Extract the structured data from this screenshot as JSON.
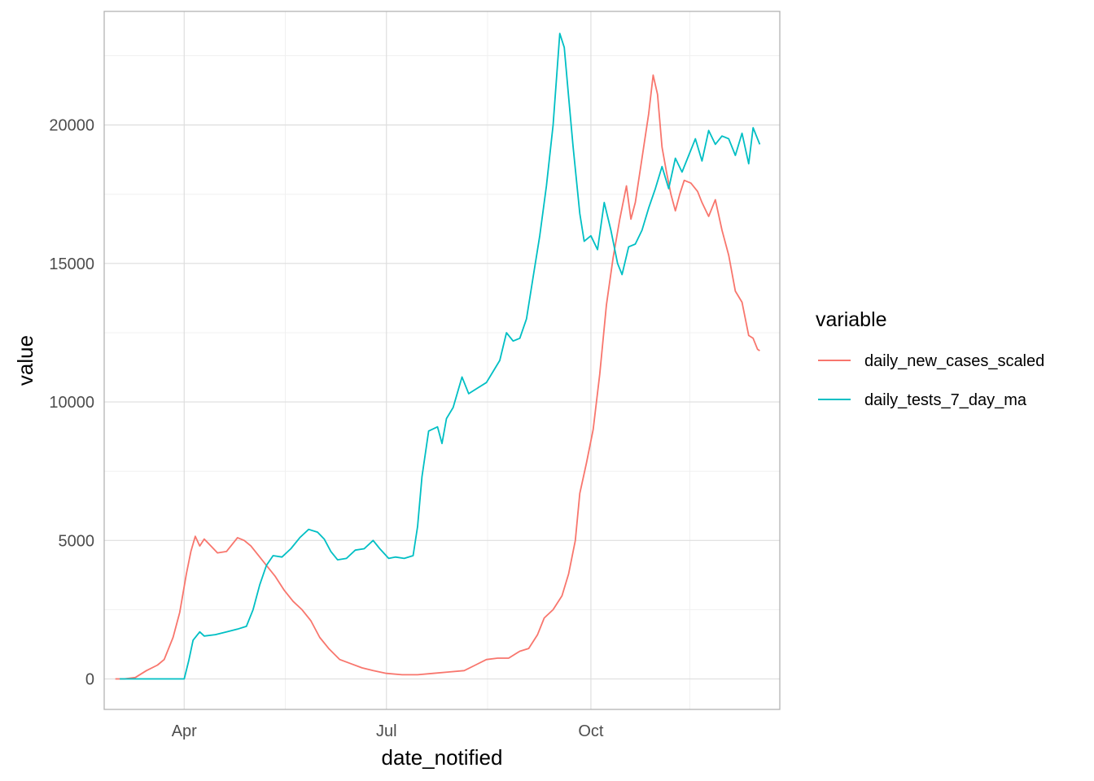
{
  "chart_data": {
    "type": "line",
    "title": "",
    "xlabel": "date_notified",
    "ylabel": "value",
    "x_ticks": [
      {
        "date": "2020-04-01",
        "label": "Apr"
      },
      {
        "date": "2020-07-01",
        "label": "Jul"
      },
      {
        "date": "2020-10-01",
        "label": "Oct"
      }
    ],
    "y_ticks": [
      0,
      5000,
      10000,
      15000,
      20000
    ],
    "xlim": [
      "2020-02-25",
      "2020-12-25"
    ],
    "ylim": [
      -1100,
      24100
    ],
    "grid": true,
    "legend": {
      "title": "variable",
      "position": "right"
    },
    "series": [
      {
        "name": "daily_new_cases_scaled",
        "color": "#F8766D",
        "points": [
          [
            "2020-03-01",
            0
          ],
          [
            "2020-03-05",
            0
          ],
          [
            "2020-03-10",
            50
          ],
          [
            "2020-03-15",
            300
          ],
          [
            "2020-03-20",
            500
          ],
          [
            "2020-03-23",
            700
          ],
          [
            "2020-03-27",
            1500
          ],
          [
            "2020-03-30",
            2400
          ],
          [
            "2020-04-02",
            3800
          ],
          [
            "2020-04-04",
            4600
          ],
          [
            "2020-04-06",
            5150
          ],
          [
            "2020-04-08",
            4800
          ],
          [
            "2020-04-10",
            5050
          ],
          [
            "2020-04-13",
            4800
          ],
          [
            "2020-04-16",
            4550
          ],
          [
            "2020-04-20",
            4600
          ],
          [
            "2020-04-23",
            4900
          ],
          [
            "2020-04-25",
            5100
          ],
          [
            "2020-04-28",
            5000
          ],
          [
            "2020-05-01",
            4800
          ],
          [
            "2020-05-04",
            4500
          ],
          [
            "2020-05-08",
            4100
          ],
          [
            "2020-05-12",
            3700
          ],
          [
            "2020-05-16",
            3200
          ],
          [
            "2020-05-20",
            2800
          ],
          [
            "2020-05-24",
            2500
          ],
          [
            "2020-05-28",
            2100
          ],
          [
            "2020-06-01",
            1500
          ],
          [
            "2020-06-05",
            1100
          ],
          [
            "2020-06-10",
            700
          ],
          [
            "2020-06-15",
            550
          ],
          [
            "2020-06-20",
            400
          ],
          [
            "2020-06-25",
            300
          ],
          [
            "2020-07-01",
            200
          ],
          [
            "2020-07-08",
            150
          ],
          [
            "2020-07-15",
            150
          ],
          [
            "2020-07-22",
            200
          ],
          [
            "2020-07-29",
            250
          ],
          [
            "2020-08-05",
            300
          ],
          [
            "2020-08-10",
            500
          ],
          [
            "2020-08-15",
            700
          ],
          [
            "2020-08-20",
            750
          ],
          [
            "2020-08-25",
            750
          ],
          [
            "2020-08-30",
            1000
          ],
          [
            "2020-09-03",
            1100
          ],
          [
            "2020-09-07",
            1600
          ],
          [
            "2020-09-10",
            2200
          ],
          [
            "2020-09-14",
            2500
          ],
          [
            "2020-09-18",
            3000
          ],
          [
            "2020-09-21",
            3800
          ],
          [
            "2020-09-24",
            5000
          ],
          [
            "2020-09-26",
            6700
          ],
          [
            "2020-09-29",
            7800
          ],
          [
            "2020-10-02",
            9000
          ],
          [
            "2020-10-05",
            11000
          ],
          [
            "2020-10-08",
            13500
          ],
          [
            "2020-10-11",
            15200
          ],
          [
            "2020-10-14",
            16600
          ],
          [
            "2020-10-17",
            17800
          ],
          [
            "2020-10-19",
            16600
          ],
          [
            "2020-10-21",
            17200
          ],
          [
            "2020-10-24",
            18800
          ],
          [
            "2020-10-27",
            20400
          ],
          [
            "2020-10-29",
            21800
          ],
          [
            "2020-10-31",
            21100
          ],
          [
            "2020-11-02",
            19200
          ],
          [
            "2020-11-04",
            18300
          ],
          [
            "2020-11-06",
            17500
          ],
          [
            "2020-11-08",
            16900
          ],
          [
            "2020-11-10",
            17500
          ],
          [
            "2020-11-12",
            18000
          ],
          [
            "2020-11-15",
            17900
          ],
          [
            "2020-11-18",
            17600
          ],
          [
            "2020-11-20",
            17200
          ],
          [
            "2020-11-23",
            16700
          ],
          [
            "2020-11-26",
            17300
          ],
          [
            "2020-11-29",
            16200
          ],
          [
            "2020-12-02",
            15300
          ],
          [
            "2020-12-05",
            14000
          ],
          [
            "2020-12-08",
            13600
          ],
          [
            "2020-12-11",
            12400
          ],
          [
            "2020-12-13",
            12300
          ],
          [
            "2020-12-15",
            11900
          ],
          [
            "2020-12-16",
            11850
          ]
        ]
      },
      {
        "name": "daily_tests_7_day_ma",
        "color": "#00BFC4",
        "points": [
          [
            "2020-03-03",
            0
          ],
          [
            "2020-03-15",
            0
          ],
          [
            "2020-03-25",
            0
          ],
          [
            "2020-04-01",
            0
          ],
          [
            "2020-04-03",
            650
          ],
          [
            "2020-04-05",
            1400
          ],
          [
            "2020-04-08",
            1700
          ],
          [
            "2020-04-10",
            1550
          ],
          [
            "2020-04-15",
            1600
          ],
          [
            "2020-04-20",
            1700
          ],
          [
            "2020-04-25",
            1800
          ],
          [
            "2020-04-29",
            1900
          ],
          [
            "2020-05-02",
            2500
          ],
          [
            "2020-05-05",
            3400
          ],
          [
            "2020-05-08",
            4100
          ],
          [
            "2020-05-11",
            4450
          ],
          [
            "2020-05-15",
            4400
          ],
          [
            "2020-05-19",
            4700
          ],
          [
            "2020-05-23",
            5100
          ],
          [
            "2020-05-27",
            5400
          ],
          [
            "2020-05-31",
            5300
          ],
          [
            "2020-06-03",
            5050
          ],
          [
            "2020-06-06",
            4600
          ],
          [
            "2020-06-09",
            4300
          ],
          [
            "2020-06-13",
            4350
          ],
          [
            "2020-06-17",
            4650
          ],
          [
            "2020-06-21",
            4700
          ],
          [
            "2020-06-25",
            5000
          ],
          [
            "2020-06-28",
            4700
          ],
          [
            "2020-07-02",
            4350
          ],
          [
            "2020-07-05",
            4400
          ],
          [
            "2020-07-09",
            4350
          ],
          [
            "2020-07-13",
            4450
          ],
          [
            "2020-07-15",
            5500
          ],
          [
            "2020-07-17",
            7300
          ],
          [
            "2020-07-20",
            8950
          ],
          [
            "2020-07-24",
            9100
          ],
          [
            "2020-07-26",
            8500
          ],
          [
            "2020-07-28",
            9400
          ],
          [
            "2020-07-31",
            9800
          ],
          [
            "2020-08-04",
            10900
          ],
          [
            "2020-08-07",
            10300
          ],
          [
            "2020-08-11",
            10500
          ],
          [
            "2020-08-15",
            10700
          ],
          [
            "2020-08-18",
            11100
          ],
          [
            "2020-08-21",
            11500
          ],
          [
            "2020-08-24",
            12500
          ],
          [
            "2020-08-27",
            12200
          ],
          [
            "2020-08-30",
            12300
          ],
          [
            "2020-09-02",
            13000
          ],
          [
            "2020-09-05",
            14500
          ],
          [
            "2020-09-08",
            16000
          ],
          [
            "2020-09-11",
            17800
          ],
          [
            "2020-09-14",
            20000
          ],
          [
            "2020-09-17",
            23300
          ],
          [
            "2020-09-19",
            22800
          ],
          [
            "2020-09-21",
            21000
          ],
          [
            "2020-09-23",
            19200
          ],
          [
            "2020-09-26",
            16800
          ],
          [
            "2020-09-28",
            15800
          ],
          [
            "2020-10-01",
            16000
          ],
          [
            "2020-10-04",
            15500
          ],
          [
            "2020-10-07",
            17200
          ],
          [
            "2020-10-10",
            16200
          ],
          [
            "2020-10-13",
            15000
          ],
          [
            "2020-10-15",
            14600
          ],
          [
            "2020-10-18",
            15600
          ],
          [
            "2020-10-21",
            15700
          ],
          [
            "2020-10-24",
            16200
          ],
          [
            "2020-10-27",
            17000
          ],
          [
            "2020-10-30",
            17700
          ],
          [
            "2020-11-02",
            18500
          ],
          [
            "2020-11-05",
            17700
          ],
          [
            "2020-11-08",
            18800
          ],
          [
            "2020-11-11",
            18300
          ],
          [
            "2020-11-14",
            18900
          ],
          [
            "2020-11-17",
            19500
          ],
          [
            "2020-11-20",
            18700
          ],
          [
            "2020-11-23",
            19800
          ],
          [
            "2020-11-26",
            19300
          ],
          [
            "2020-11-29",
            19600
          ],
          [
            "2020-12-02",
            19500
          ],
          [
            "2020-12-05",
            18900
          ],
          [
            "2020-12-08",
            19700
          ],
          [
            "2020-12-11",
            18600
          ],
          [
            "2020-12-13",
            19900
          ],
          [
            "2020-12-16",
            19300
          ]
        ]
      }
    ]
  }
}
